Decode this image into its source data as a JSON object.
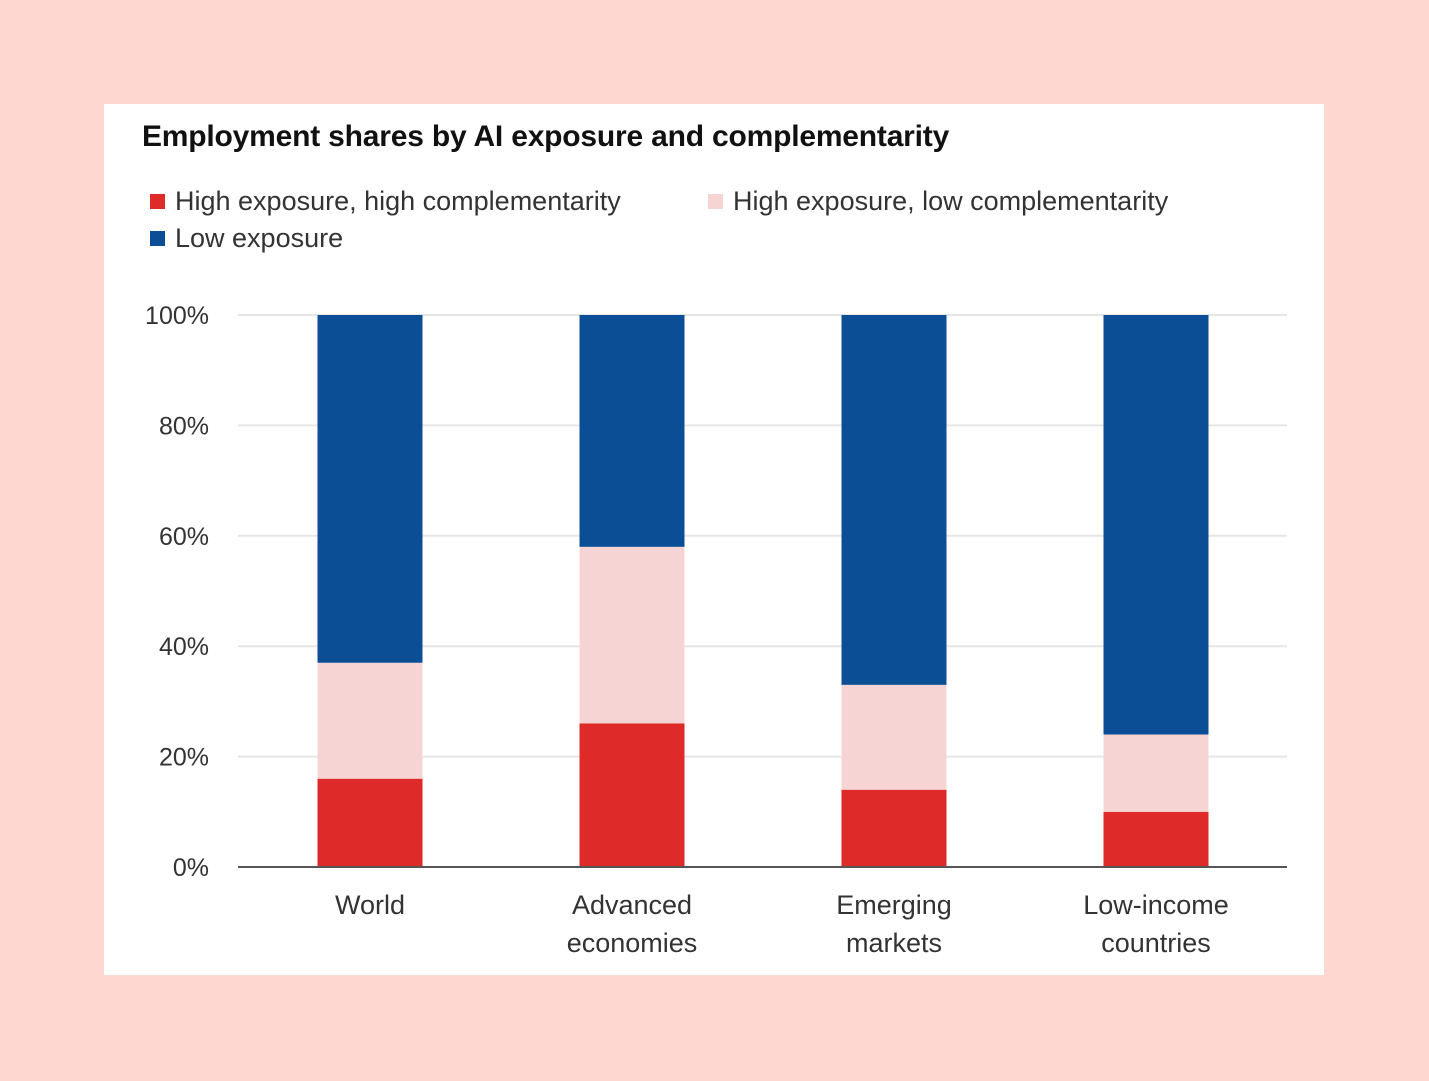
{
  "colors": {
    "high_high": "#de2a28",
    "high_low": "#f6d4d4",
    "low": "#0c4e96",
    "grid": "#e6e6e6",
    "axis": "#555555"
  },
  "chart_data": {
    "type": "bar",
    "stacked": true,
    "title": "Employment shares by AI exposure and complementarity",
    "categories": [
      [
        "World"
      ],
      [
        "Advanced",
        "economies"
      ],
      [
        "Emerging",
        "markets"
      ],
      [
        "Low-income",
        "countries"
      ]
    ],
    "series": [
      {
        "name": "High exposure, high complementarity",
        "color": "#de2a28",
        "values": [
          16,
          26,
          14,
          10
        ]
      },
      {
        "name": "High exposure, low complementarity",
        "color": "#f6d4d4",
        "values": [
          21,
          32,
          19,
          14
        ]
      },
      {
        "name": "Low exposure",
        "color": "#0c4e96",
        "values": [
          63,
          42,
          67,
          76
        ]
      }
    ],
    "y_ticks": [
      "0%",
      "20%",
      "40%",
      "60%",
      "80%",
      "100%"
    ],
    "ylim": [
      0,
      100
    ],
    "grid": true,
    "legend_position": "top-left"
  }
}
